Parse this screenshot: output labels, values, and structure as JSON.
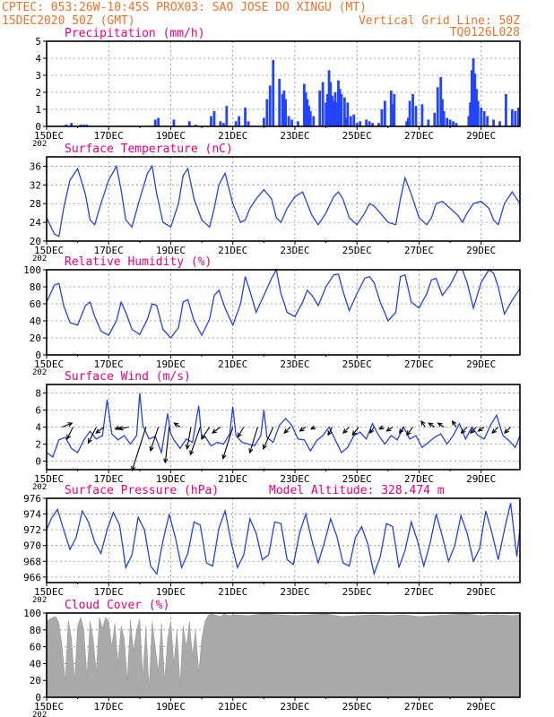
{
  "header": {
    "line1": "CPTEC:   053:26W-10:45S    PROX03: SAO JOSE DO XINGU (MT)",
    "line2_left": "15DEC2020 50Z (GMT)",
    "line2_right": "Vertical Grid Line: 50Z",
    "line3_right": "TQ0126L028"
  },
  "colors": {
    "header": "#e8742a",
    "panel_title": "#e6007e",
    "line": "#2244dd",
    "bar": "#2244ff",
    "cloud": "#a9a9a9",
    "arrow": "#000000",
    "grid": "#8c8c8c"
  },
  "x_axis": {
    "ticks": [
      "15DEC",
      "17DEC",
      "19DEC",
      "21DEC",
      "23DEC",
      "25DEC",
      "27DEC",
      "29DEC"
    ],
    "clipped_label": "202"
  },
  "chart_data": [
    {
      "id": "precip",
      "type": "bar",
      "title": "Precipitation  (mm/h)",
      "x_unit": "days since 15DEC",
      "ylim": [
        0,
        5
      ],
      "yticks": [
        0,
        1,
        2,
        3,
        4,
        5
      ],
      "grid": true,
      "x": [
        0.63,
        0.8,
        1.1,
        1.2,
        1.3,
        3.5,
        3.6,
        4.1,
        4.6,
        4.8,
        5.3,
        5.4,
        5.6,
        5.7,
        5.8,
        6.1,
        6.2,
        6.4,
        6.5,
        7.0,
        7.1,
        7.2,
        7.3,
        7.5,
        7.6,
        7.65,
        7.7,
        7.8,
        7.9,
        8.1,
        8.3,
        8.35,
        8.4,
        8.45,
        8.5,
        8.6,
        8.8,
        8.9,
        9.0,
        9.05,
        9.1,
        9.15,
        9.2,
        9.25,
        9.3,
        9.35,
        9.4,
        9.45,
        9.5,
        9.6,
        9.65,
        9.7,
        9.8,
        9.9,
        10.0,
        10.1,
        10.3,
        10.4,
        10.5,
        10.7,
        10.8,
        10.9,
        11.1,
        11.15,
        11.2,
        11.6,
        11.65,
        11.7,
        11.8,
        11.9,
        12.1,
        12.3,
        12.5,
        12.6,
        12.7,
        12.75,
        12.8,
        12.9,
        13.0,
        13.1,
        13.2,
        13.6,
        13.65,
        13.7,
        13.75,
        13.8,
        13.85,
        13.9,
        14.0,
        14.1,
        14.2,
        14.4,
        14.6,
        14.8,
        15.0,
        15.1,
        15.2
      ],
      "values": [
        0.1,
        0.2,
        0.1,
        0.1,
        0.1,
        0.4,
        0.5,
        0.4,
        0.3,
        0.1,
        0.6,
        0.9,
        0.3,
        0.2,
        1.2,
        0.3,
        0.6,
        1.1,
        0.3,
        0.5,
        1.6,
        2.4,
        3.9,
        2.8,
        1.9,
        2.1,
        1.6,
        0.6,
        0.4,
        0.3,
        2.5,
        2.0,
        1.6,
        1.2,
        0.9,
        0.6,
        2.1,
        2.6,
        1.4,
        1.9,
        3.3,
        2.6,
        1.8,
        1.5,
        2.0,
        1.4,
        2.7,
        2.2,
        1.9,
        1.7,
        0.5,
        1.4,
        0.6,
        0.7,
        0.2,
        0.3,
        0.4,
        0.3,
        0.2,
        0.2,
        1.0,
        1.5,
        2.1,
        1.3,
        1.9,
        0.3,
        0.5,
        1.5,
        1.9,
        1.2,
        1.3,
        0.4,
        0.8,
        2.3,
        2.9,
        1.6,
        0.9,
        0.5,
        0.4,
        0.3,
        0.2,
        0.6,
        1.4,
        3.3,
        4.0,
        3.1,
        2.2,
        1.5,
        1.1,
        0.9,
        0.6,
        0.4,
        0.3,
        1.9,
        1.0,
        0.9,
        1.1
      ]
    },
    {
      "id": "temp",
      "type": "line",
      "title": "Surface Temperature (nC)",
      "x_unit": "days since 15DEC",
      "ylim": [
        20,
        38
      ],
      "yticks": [
        20,
        24,
        28,
        32,
        36
      ],
      "grid": true,
      "x": [
        0,
        0.25,
        0.4,
        0.55,
        0.75,
        1.0,
        1.25,
        1.4,
        1.55,
        1.75,
        2.0,
        2.25,
        2.4,
        2.55,
        2.75,
        3.0,
        3.25,
        3.4,
        3.55,
        3.75,
        4.0,
        4.25,
        4.4,
        4.55,
        4.75,
        5.0,
        5.25,
        5.4,
        5.55,
        5.75,
        6.0,
        6.25,
        6.4,
        6.55,
        6.75,
        7.0,
        7.25,
        7.4,
        7.55,
        7.75,
        8.0,
        8.25,
        8.4,
        8.55,
        8.75,
        9.0,
        9.25,
        9.4,
        9.55,
        9.75,
        10.0,
        10.25,
        10.4,
        10.55,
        10.75,
        11.0,
        11.25,
        11.4,
        11.55,
        11.75,
        12.0,
        12.25,
        12.4,
        12.55,
        12.75,
        13.0,
        13.25,
        13.4,
        13.55,
        13.75,
        14.0,
        14.25,
        14.4,
        14.55,
        14.75,
        15.0,
        15.25
      ],
      "values": [
        25,
        21.5,
        21,
        27,
        33,
        35.5,
        30,
        24.5,
        23.5,
        28,
        33,
        36,
        31,
        24.5,
        23,
        29,
        34.5,
        36,
        30,
        24,
        23,
        28,
        34,
        35.5,
        29,
        24.5,
        23,
        27,
        32,
        34.5,
        28,
        24,
        24.5,
        27,
        29,
        31,
        29,
        25,
        24,
        27,
        29.5,
        30.5,
        28,
        25.5,
        23.5,
        26,
        29.5,
        30.5,
        29,
        25,
        23.5,
        26,
        28,
        27.5,
        26,
        24,
        23.5,
        29,
        33.5,
        30,
        25,
        23.5,
        25,
        28,
        28.5,
        27,
        25.5,
        24,
        26,
        28,
        28.5,
        27,
        24.5,
        23.5,
        28,
        30.5,
        28
      ]
    },
    {
      "id": "rh",
      "type": "line",
      "title": "Relative Humidity (%)",
      "x_unit": "days since 15DEC",
      "ylim": [
        0,
        100
      ],
      "yticks": [
        0,
        20,
        40,
        60,
        80,
        100
      ],
      "grid": true,
      "x": [
        0,
        0.25,
        0.4,
        0.55,
        0.75,
        1.0,
        1.25,
        1.4,
        1.55,
        1.75,
        2.0,
        2.25,
        2.4,
        2.55,
        2.75,
        3.0,
        3.25,
        3.4,
        3.55,
        3.75,
        4.0,
        4.25,
        4.4,
        4.55,
        4.75,
        5.0,
        5.25,
        5.4,
        5.55,
        5.75,
        6.0,
        6.25,
        6.4,
        6.55,
        6.75,
        7.0,
        7.25,
        7.4,
        7.55,
        7.75,
        8.0,
        8.25,
        8.4,
        8.55,
        8.75,
        9.0,
        9.25,
        9.4,
        9.55,
        9.75,
        10.0,
        10.25,
        10.4,
        10.55,
        10.75,
        11.0,
        11.25,
        11.4,
        11.55,
        11.75,
        12.0,
        12.25,
        12.4,
        12.55,
        12.75,
        13.0,
        13.25,
        13.4,
        13.55,
        13.75,
        14.0,
        14.25,
        14.4,
        14.55,
        14.75,
        15.0,
        15.25
      ],
      "values": [
        62,
        82,
        84,
        58,
        38,
        35,
        58,
        62,
        45,
        28,
        23,
        40,
        62,
        50,
        30,
        24,
        42,
        60,
        58,
        30,
        20,
        32,
        62,
        65,
        40,
        23,
        42,
        70,
        76,
        55,
        35,
        60,
        92,
        75,
        50,
        70,
        90,
        100,
        72,
        50,
        45,
        62,
        76,
        70,
        58,
        80,
        94,
        95,
        75,
        52,
        72,
        90,
        92,
        85,
        62,
        40,
        50,
        92,
        94,
        62,
        55,
        72,
        88,
        90,
        70,
        82,
        100,
        100,
        85,
        55,
        85,
        100,
        96,
        80,
        48,
        64,
        78
      ]
    },
    {
      "id": "wind",
      "type": "line",
      "title": "Surface Wind (m/s)",
      "x_unit": "days since 15DEC",
      "ylim": [
        -1,
        9
      ],
      "yticks": [
        0,
        2,
        4,
        6,
        8
      ],
      "grid": true,
      "x": [
        0,
        0.2,
        0.4,
        0.6,
        0.8,
        1.0,
        1.2,
        1.4,
        1.6,
        1.8,
        1.95,
        2.1,
        2.3,
        2.5,
        2.7,
        2.9,
        3.0,
        3.1,
        3.3,
        3.5,
        3.7,
        3.9,
        4.0,
        4.1,
        4.3,
        4.5,
        4.7,
        4.9,
        5.0,
        5.1,
        5.3,
        5.5,
        5.7,
        5.9,
        6.0,
        6.1,
        6.3,
        6.5,
        6.7,
        6.9,
        7.0,
        7.1,
        7.3,
        7.5,
        7.7,
        7.9,
        8.1,
        8.3,
        8.5,
        8.7,
        8.9,
        9.1,
        9.3,
        9.5,
        9.7,
        9.9,
        10.1,
        10.3,
        10.5,
        10.7,
        10.9,
        11.1,
        11.3,
        11.5,
        11.7,
        11.9,
        12.1,
        12.3,
        12.5,
        12.7,
        12.9,
        13.1,
        13.3,
        13.5,
        13.7,
        13.9,
        14.1,
        14.3,
        14.5,
        14.7,
        14.9,
        15.1,
        15.25
      ],
      "values": [
        1,
        0.5,
        2.5,
        2.8,
        1.5,
        1.0,
        2.5,
        3.5,
        2.6,
        3.0,
        7.2,
        3.2,
        2.5,
        3.0,
        2.0,
        3.0,
        8.0,
        4.2,
        2.6,
        2.9,
        1.0,
        5.6,
        3.2,
        2.5,
        1.5,
        2.6,
        2.2,
        6.5,
        2.6,
        2.9,
        1.8,
        2.2,
        2.0,
        3.2,
        6.4,
        3.0,
        2.2,
        2.0,
        1.8,
        3.0,
        6.0,
        2.8,
        2.2,
        4.2,
        5.0,
        4.2,
        2.6,
        2.5,
        1.2,
        2.4,
        3.0,
        4.0,
        2.5,
        1.0,
        1.6,
        3.0,
        3.4,
        2.6,
        4.4,
        3.0,
        2.0,
        3.0,
        2.5,
        4.0,
        2.6,
        3.0,
        1.6,
        2.2,
        2.8,
        3.2,
        2.0,
        3.0,
        4.4,
        2.6,
        4.0,
        3.0,
        2.6,
        4.2,
        5.4,
        3.0,
        2.4,
        1.6,
        3.0
      ],
      "arrows": {
        "x": [
          0.5,
          0.85,
          1.6,
          1.85,
          2.4,
          2.65,
          3.2,
          3.6,
          3.95,
          4.3,
          4.65,
          4.95,
          5.25,
          5.6,
          6.0,
          6.35,
          6.8,
          7.3,
          7.85,
          8.35,
          8.65,
          9.2,
          9.75,
          10.05,
          10.55,
          10.85,
          11.15,
          11.5,
          11.8,
          12.2,
          12.5,
          12.8,
          13.2,
          13.55,
          13.85,
          14.1,
          14.55,
          14.95
        ],
        "u": [
          0.5,
          -0.3,
          -0.4,
          -0.4,
          -0.3,
          -0.5,
          -0.7,
          -0.4,
          -0.2,
          -0.3,
          -0.2,
          -0.5,
          -0.4,
          -0.4,
          -0.5,
          -0.3,
          -0.4,
          -0.5,
          -0.3,
          -0.3,
          -0.2,
          -0.2,
          -0.3,
          -0.3,
          -0.2,
          -0.2,
          -0.3,
          -0.2,
          -0.3,
          -0.2,
          -0.3,
          -0.3,
          -0.2,
          -0.3,
          -0.3,
          -0.3,
          -0.3,
          -0.3
        ],
        "v": [
          0.2,
          -0.6,
          -0.8,
          -0.3,
          -0.1,
          -0.1,
          -2.2,
          -1.2,
          -1.8,
          0.2,
          -1.1,
          -1.4,
          -0.6,
          -0.3,
          -1.6,
          -0.5,
          -1.3,
          -1.1,
          -0.3,
          -0.2,
          -0.1,
          -0.4,
          -0.3,
          -0.4,
          -0.3,
          -0.1,
          -0.2,
          -0.3,
          -0.4,
          0.3,
          0.2,
          0.2,
          0.3,
          -0.3,
          -0.3,
          -0.2,
          -0.3,
          -0.3
        ]
      }
    },
    {
      "id": "pres",
      "type": "line",
      "title": "Surface Pressure (hPa)",
      "annotation": "Model Altitude: 328.474 m",
      "x_unit": "days since 15DEC",
      "ylim": [
        965.3,
        976
      ],
      "yticks": [
        966,
        968,
        970,
        972,
        974,
        976
      ],
      "grid": true,
      "x": [
        0,
        0.15,
        0.35,
        0.55,
        0.75,
        0.95,
        1.15,
        1.35,
        1.55,
        1.75,
        1.95,
        2.15,
        2.35,
        2.55,
        2.75,
        2.95,
        3.15,
        3.35,
        3.55,
        3.75,
        3.95,
        4.15,
        4.35,
        4.55,
        4.75,
        4.95,
        5.15,
        5.35,
        5.55,
        5.75,
        5.95,
        6.15,
        6.35,
        6.55,
        6.75,
        6.95,
        7.15,
        7.35,
        7.55,
        7.75,
        7.95,
        8.15,
        8.35,
        8.55,
        8.75,
        8.95,
        9.15,
        9.35,
        9.55,
        9.75,
        9.95,
        10.15,
        10.35,
        10.55,
        10.75,
        10.95,
        11.15,
        11.35,
        11.55,
        11.75,
        11.95,
        12.15,
        12.35,
        12.55,
        12.75,
        12.95,
        13.15,
        13.35,
        13.55,
        13.75,
        13.95,
        14.15,
        14.35,
        14.55,
        14.75,
        14.95,
        15.15,
        15.25
      ],
      "values": [
        972,
        973.4,
        974.6,
        972,
        969.5,
        971,
        974.4,
        973,
        970.4,
        969,
        972,
        974.2,
        972.6,
        967.2,
        968.8,
        973.6,
        972,
        967.4,
        966.4,
        970.6,
        974,
        971,
        967.2,
        969,
        973,
        972.6,
        967.8,
        967.4,
        972.2,
        974.4,
        970.4,
        967.2,
        968.8,
        973.4,
        971.6,
        968.2,
        968.8,
        973,
        972.8,
        968.2,
        967.6,
        971.6,
        974,
        970.6,
        967.8,
        970.4,
        973.4,
        971.2,
        967.8,
        967.4,
        971,
        972.4,
        970.2,
        966.4,
        968.6,
        972.8,
        972.4,
        967.2,
        969.4,
        973,
        970.6,
        967.4,
        970.2,
        974,
        971.2,
        968,
        970,
        973.8,
        971.6,
        968,
        969.6,
        974.4,
        971.6,
        968.2,
        972,
        975.4,
        968.6,
        972.2
      ]
    },
    {
      "id": "cloud",
      "type": "area",
      "title": "Cloud Cover (%)",
      "x_unit": "days since 15DEC",
      "ylim": [
        0,
        100
      ],
      "yticks": [
        0,
        20,
        40,
        60,
        80,
        100
      ],
      "grid": true,
      "x": [
        0,
        0.1,
        0.2,
        0.3,
        0.4,
        0.5,
        0.6,
        0.7,
        0.8,
        0.9,
        1.0,
        1.1,
        1.2,
        1.3,
        1.4,
        1.5,
        1.6,
        1.7,
        1.8,
        1.9,
        2.0,
        2.1,
        2.2,
        2.3,
        2.4,
        2.5,
        2.6,
        2.7,
        2.8,
        2.9,
        3.0,
        3.1,
        3.2,
        3.3,
        3.4,
        3.5,
        3.6,
        3.7,
        3.8,
        3.9,
        4.0,
        4.1,
        4.2,
        4.3,
        4.4,
        4.5,
        4.6,
        4.7,
        4.8,
        4.9,
        5.0,
        5.1,
        5.2,
        5.3,
        5.4,
        5.5,
        5.6,
        5.7,
        5.8,
        5.9,
        6.0,
        6.5,
        7.0,
        7.5,
        8.0,
        8.5,
        9.0,
        9.5,
        10.0,
        10.5,
        11.0,
        11.5,
        12.0,
        12.5,
        13.0,
        13.5,
        14.0,
        14.5,
        15.0,
        15.25
      ],
      "values": [
        90,
        93,
        95,
        96,
        88,
        60,
        20,
        92,
        70,
        20,
        85,
        95,
        80,
        25,
        90,
        70,
        30,
        95,
        82,
        95,
        90,
        60,
        88,
        40,
        85,
        70,
        20,
        92,
        55,
        80,
        93,
        25,
        85,
        10,
        90,
        60,
        30,
        88,
        20,
        70,
        90,
        40,
        80,
        15,
        85,
        60,
        90,
        50,
        80,
        30,
        70,
        90,
        97,
        99,
        98,
        97,
        96,
        99,
        98,
        97,
        98,
        97,
        99,
        98,
        97,
        98,
        99,
        96,
        97,
        98,
        97,
        98,
        96,
        97,
        98,
        99,
        97,
        98,
        97,
        98
      ]
    }
  ]
}
